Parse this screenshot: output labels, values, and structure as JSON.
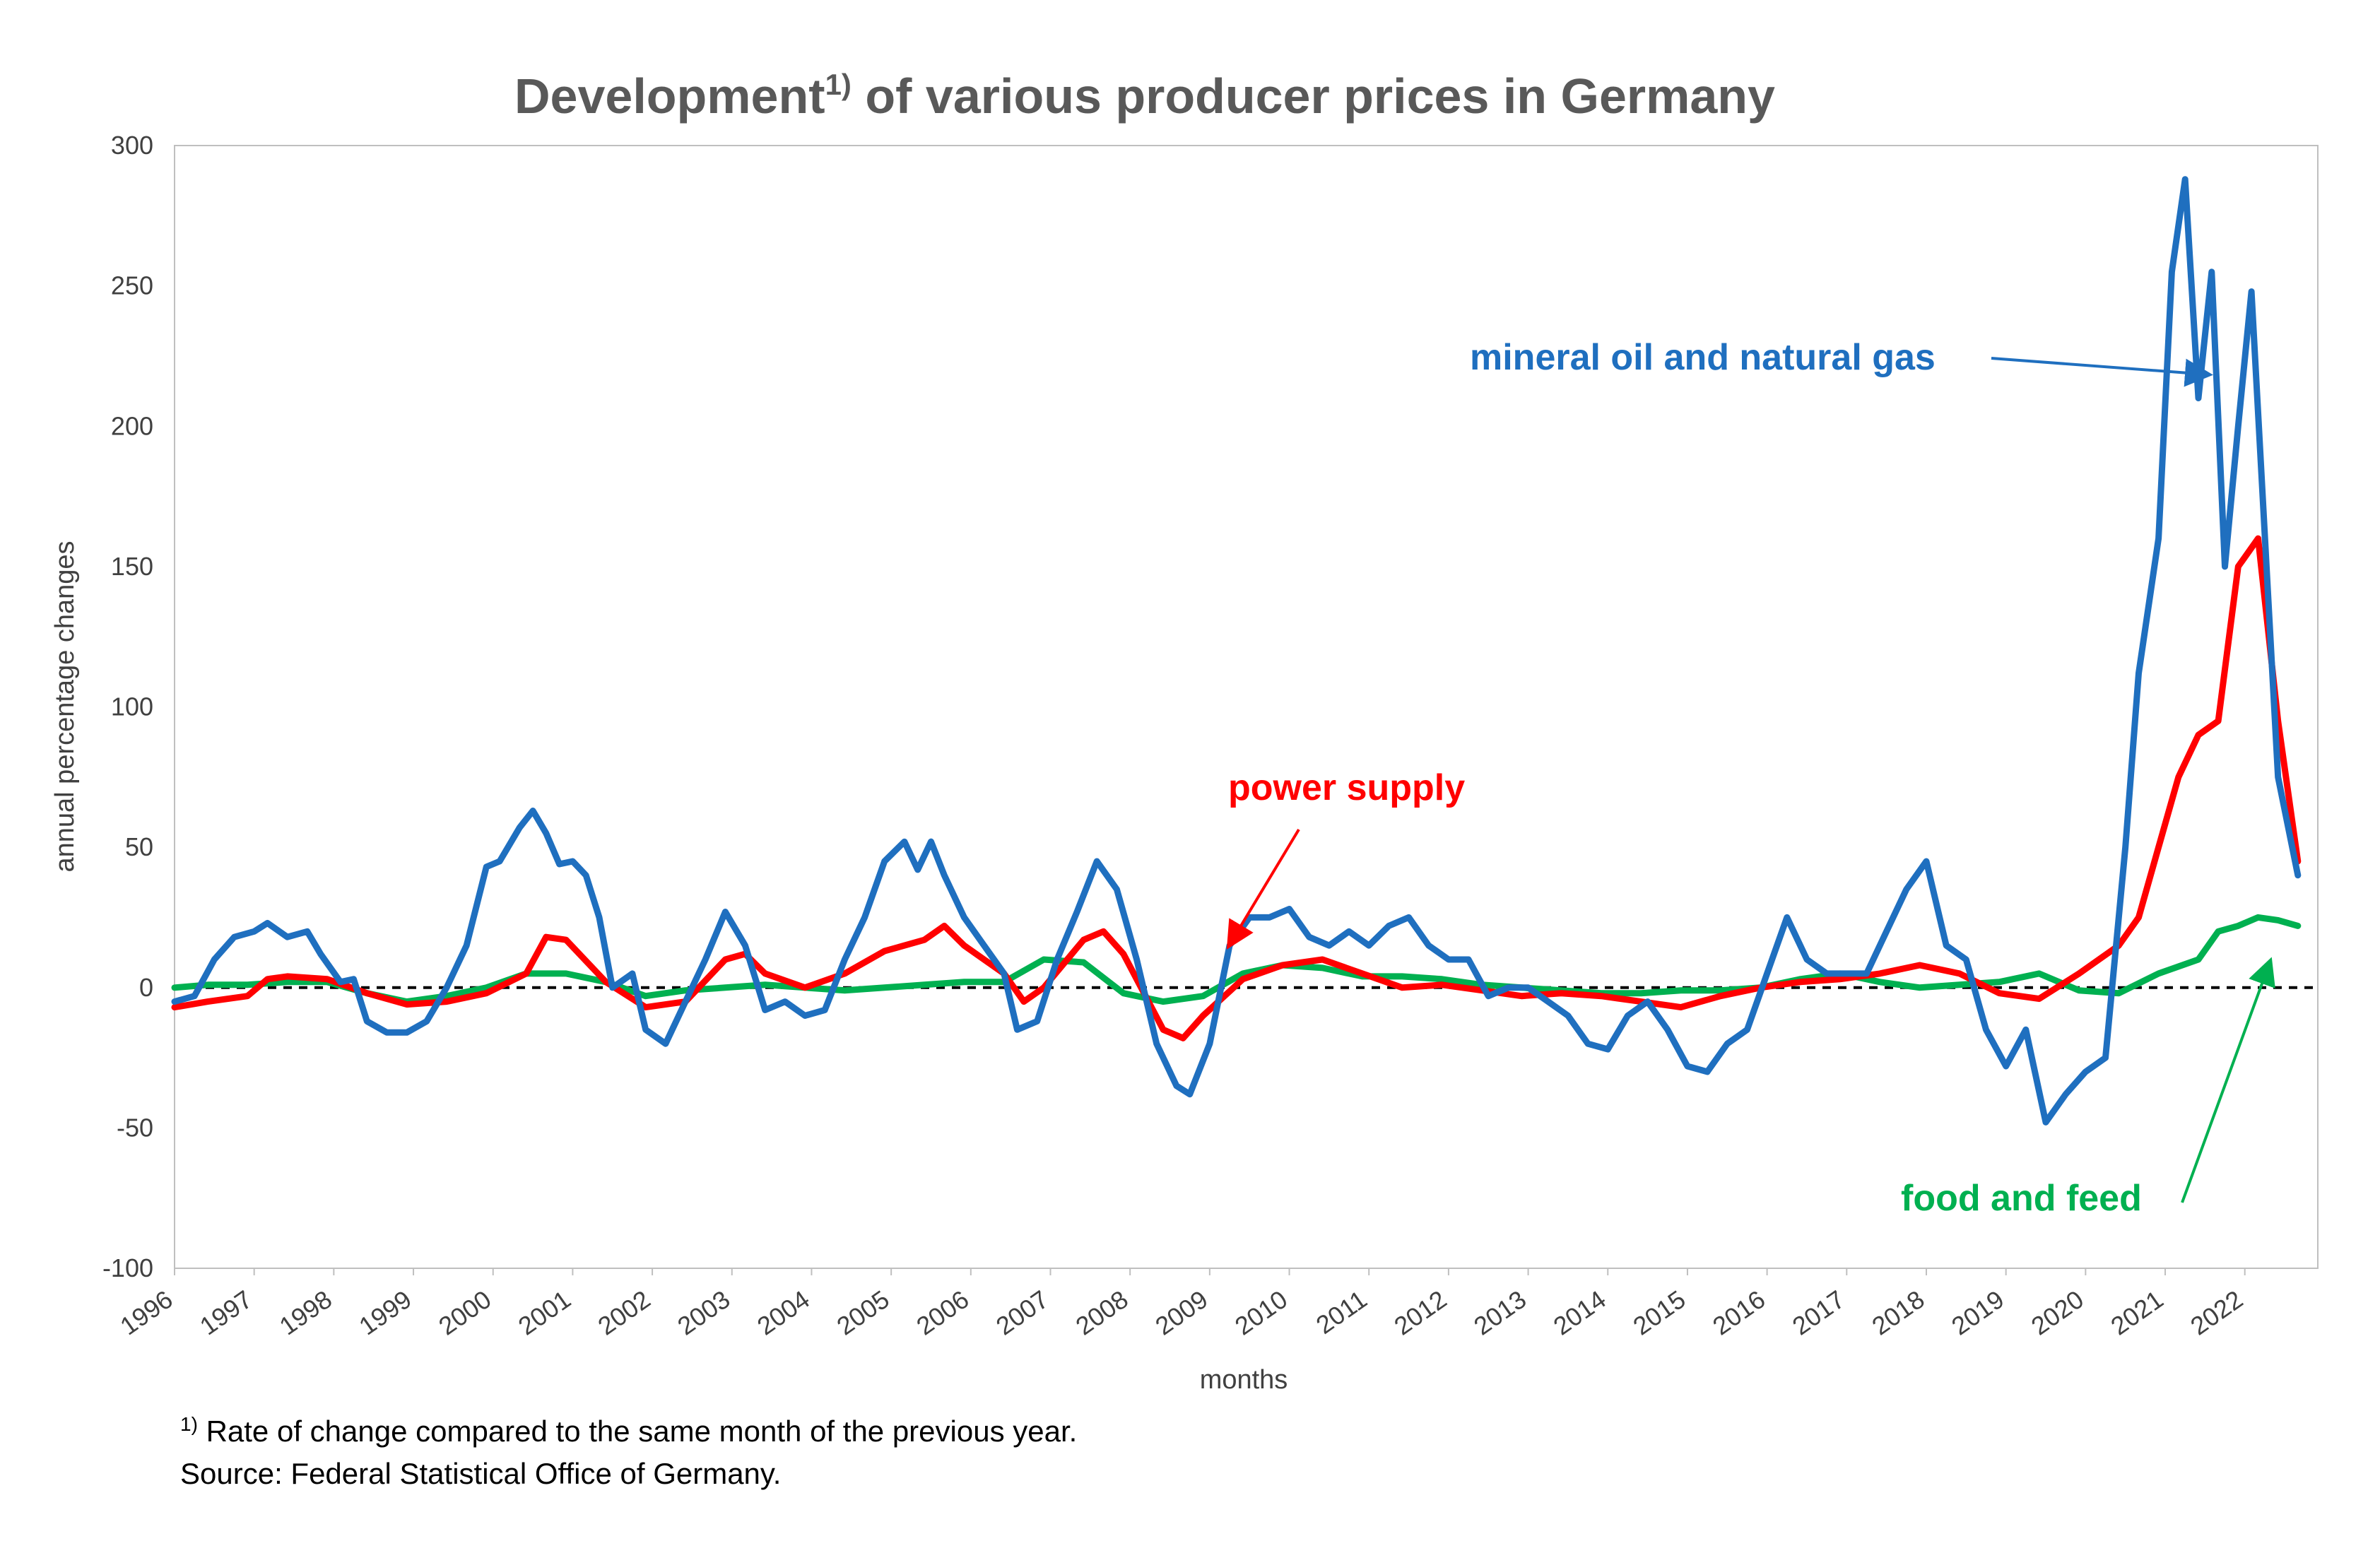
{
  "chart_data": {
    "type": "line",
    "title": "Development",
    "title_sup": "1)",
    "title_rest": " of various producer prices in Germany",
    "xlabel": "months",
    "ylabel": "annual percentage changes",
    "ylim": [
      -100,
      300
    ],
    "yticks": [
      300,
      250,
      200,
      150,
      100,
      50,
      0,
      -50,
      -100
    ],
    "xlim": [
      "1996-01",
      "2022-12"
    ],
    "xticks": [
      "1996",
      "1997",
      "1998",
      "1999",
      "2000",
      "2001",
      "2002",
      "2003",
      "2004",
      "2005",
      "2006",
      "2007",
      "2008",
      "2009",
      "2010",
      "2011",
      "2012",
      "2013",
      "2014",
      "2015",
      "2016",
      "2017",
      "2018",
      "2019",
      "2020",
      "2021",
      "2022"
    ],
    "grid": false,
    "zero_line": "dashed",
    "series": [
      {
        "name": "mineral oil and natural gas",
        "color": "#1f6fbf",
        "points": [
          [
            "1996-01",
            -5
          ],
          [
            "1996-04",
            -3
          ],
          [
            "1996-07",
            10
          ],
          [
            "1996-10",
            18
          ],
          [
            "1997-01",
            20
          ],
          [
            "1997-03",
            23
          ],
          [
            "1997-06",
            18
          ],
          [
            "1997-09",
            20
          ],
          [
            "1997-11",
            12
          ],
          [
            "1998-02",
            2
          ],
          [
            "1998-04",
            3
          ],
          [
            "1998-06",
            -12
          ],
          [
            "1998-09",
            -16
          ],
          [
            "1998-12",
            -16
          ],
          [
            "1999-03",
            -12
          ],
          [
            "1999-06",
            0
          ],
          [
            "1999-09",
            15
          ],
          [
            "1999-12",
            43
          ],
          [
            "2000-02",
            45
          ],
          [
            "2000-05",
            57
          ],
          [
            "2000-07",
            63
          ],
          [
            "2000-09",
            55
          ],
          [
            "2000-11",
            44
          ],
          [
            "2001-01",
            45
          ],
          [
            "2001-03",
            40
          ],
          [
            "2001-05",
            25
          ],
          [
            "2001-07",
            0
          ],
          [
            "2001-10",
            5
          ],
          [
            "2001-12",
            -15
          ],
          [
            "2002-03",
            -20
          ],
          [
            "2002-06",
            -5
          ],
          [
            "2002-09",
            10
          ],
          [
            "2002-12",
            27
          ],
          [
            "2003-03",
            15
          ],
          [
            "2003-06",
            -8
          ],
          [
            "2003-09",
            -5
          ],
          [
            "2003-12",
            -10
          ],
          [
            "2004-03",
            -8
          ],
          [
            "2004-06",
            10
          ],
          [
            "2004-09",
            25
          ],
          [
            "2004-12",
            45
          ],
          [
            "2005-03",
            52
          ],
          [
            "2005-05",
            42
          ],
          [
            "2005-07",
            52
          ],
          [
            "2005-09",
            40
          ],
          [
            "2005-12",
            25
          ],
          [
            "2006-03",
            15
          ],
          [
            "2006-06",
            5
          ],
          [
            "2006-08",
            -15
          ],
          [
            "2006-11",
            -12
          ],
          [
            "2007-02",
            10
          ],
          [
            "2007-05",
            27
          ],
          [
            "2007-08",
            45
          ],
          [
            "2007-11",
            35
          ],
          [
            "2008-02",
            10
          ],
          [
            "2008-05",
            -20
          ],
          [
            "2008-08",
            -35
          ],
          [
            "2008-10",
            -38
          ],
          [
            "2009-01",
            -20
          ],
          [
            "2009-04",
            15
          ],
          [
            "2009-07",
            25
          ],
          [
            "2009-10",
            25
          ],
          [
            "2010-01",
            28
          ],
          [
            "2010-04",
            18
          ],
          [
            "2010-07",
            15
          ],
          [
            "2010-10",
            20
          ],
          [
            "2011-01",
            15
          ],
          [
            "2011-04",
            22
          ],
          [
            "2011-07",
            25
          ],
          [
            "2011-10",
            15
          ],
          [
            "2012-01",
            10
          ],
          [
            "2012-04",
            10
          ],
          [
            "2012-07",
            -3
          ],
          [
            "2012-10",
            0
          ],
          [
            "2013-01",
            0
          ],
          [
            "2013-04",
            -5
          ],
          [
            "2013-07",
            -10
          ],
          [
            "2013-10",
            -20
          ],
          [
            "2014-01",
            -22
          ],
          [
            "2014-04",
            -10
          ],
          [
            "2014-07",
            -5
          ],
          [
            "2014-10",
            -15
          ],
          [
            "2015-01",
            -28
          ],
          [
            "2015-04",
            -30
          ],
          [
            "2015-07",
            -20
          ],
          [
            "2015-10",
            -15
          ],
          [
            "2016-01",
            5
          ],
          [
            "2016-04",
            25
          ],
          [
            "2016-07",
            10
          ],
          [
            "2016-10",
            5
          ],
          [
            "2017-01",
            5
          ],
          [
            "2017-04",
            5
          ],
          [
            "2017-07",
            20
          ],
          [
            "2017-10",
            35
          ],
          [
            "2018-01",
            45
          ],
          [
            "2018-04",
            15
          ],
          [
            "2018-07",
            10
          ],
          [
            "2018-10",
            -15
          ],
          [
            "2019-01",
            -28
          ],
          [
            "2019-04",
            -15
          ],
          [
            "2019-07",
            -48
          ],
          [
            "2019-10",
            -38
          ],
          [
            "2020-01",
            -30
          ],
          [
            "2020-04",
            -25
          ],
          [
            "2020-07",
            50
          ],
          [
            "2020-09",
            112
          ],
          [
            "2020-12",
            160
          ],
          [
            "2021-02",
            255
          ],
          [
            "2021-04",
            288
          ],
          [
            "2021-06",
            210
          ],
          [
            "2021-08",
            255
          ],
          [
            "2021-10",
            150
          ],
          [
            "2021-12",
            200
          ],
          [
            "2022-02",
            248
          ],
          [
            "2022-06",
            75
          ],
          [
            "2022-09",
            40
          ]
        ]
      },
      {
        "name": "power supply",
        "color": "#ff0000",
        "points": [
          [
            "1996-01",
            -7
          ],
          [
            "1996-06",
            -5
          ],
          [
            "1996-12",
            -3
          ],
          [
            "1997-03",
            3
          ],
          [
            "1997-06",
            4
          ],
          [
            "1997-12",
            3
          ],
          [
            "1998-06",
            -2
          ],
          [
            "1998-12",
            -6
          ],
          [
            "1999-06",
            -5
          ],
          [
            "1999-12",
            -2
          ],
          [
            "2000-06",
            5
          ],
          [
            "2000-09",
            18
          ],
          [
            "2000-12",
            17
          ],
          [
            "2001-06",
            2
          ],
          [
            "2001-12",
            -7
          ],
          [
            "2002-06",
            -5
          ],
          [
            "2002-12",
            10
          ],
          [
            "2003-03",
            12
          ],
          [
            "2003-06",
            5
          ],
          [
            "2003-12",
            0
          ],
          [
            "2004-06",
            5
          ],
          [
            "2004-12",
            13
          ],
          [
            "2005-06",
            17
          ],
          [
            "2005-09",
            22
          ],
          [
            "2005-12",
            15
          ],
          [
            "2006-06",
            5
          ],
          [
            "2006-09",
            -5
          ],
          [
            "2006-12",
            0
          ],
          [
            "2007-06",
            17
          ],
          [
            "2007-09",
            20
          ],
          [
            "2007-12",
            12
          ],
          [
            "2008-06",
            -15
          ],
          [
            "2008-09",
            -18
          ],
          [
            "2008-12",
            -10
          ],
          [
            "2009-06",
            3
          ],
          [
            "2009-12",
            8
          ],
          [
            "2010-06",
            10
          ],
          [
            "2010-12",
            5
          ],
          [
            "2011-06",
            0
          ],
          [
            "2011-12",
            1
          ],
          [
            "2012-06",
            -1
          ],
          [
            "2012-12",
            -3
          ],
          [
            "2013-06",
            -2
          ],
          [
            "2013-12",
            -3
          ],
          [
            "2014-06",
            -5
          ],
          [
            "2014-12",
            -7
          ],
          [
            "2015-06",
            -3
          ],
          [
            "2015-12",
            0
          ],
          [
            "2016-06",
            2
          ],
          [
            "2016-12",
            3
          ],
          [
            "2017-06",
            5
          ],
          [
            "2017-12",
            8
          ],
          [
            "2018-06",
            5
          ],
          [
            "2018-12",
            -2
          ],
          [
            "2019-06",
            -4
          ],
          [
            "2019-12",
            5
          ],
          [
            "2020-06",
            15
          ],
          [
            "2020-09",
            25
          ],
          [
            "2020-12",
            50
          ],
          [
            "2021-03",
            75
          ],
          [
            "2021-06",
            90
          ],
          [
            "2021-09",
            95
          ],
          [
            "2021-12",
            150
          ],
          [
            "2022-03",
            160
          ],
          [
            "2022-06",
            95
          ],
          [
            "2022-09",
            45
          ]
        ]
      },
      {
        "name": "food and feed",
        "color": "#00b050",
        "points": [
          [
            "1996-01",
            0
          ],
          [
            "1996-06",
            1
          ],
          [
            "1996-12",
            1
          ],
          [
            "1997-06",
            2
          ],
          [
            "1997-12",
            2
          ],
          [
            "1998-06",
            -2
          ],
          [
            "1998-12",
            -5
          ],
          [
            "1999-06",
            -3
          ],
          [
            "1999-12",
            0
          ],
          [
            "2000-06",
            5
          ],
          [
            "2000-12",
            5
          ],
          [
            "2001-06",
            2
          ],
          [
            "2001-12",
            -3
          ],
          [
            "2002-06",
            -1
          ],
          [
            "2002-12",
            0
          ],
          [
            "2003-06",
            1
          ],
          [
            "2003-12",
            0
          ],
          [
            "2004-06",
            -1
          ],
          [
            "2004-12",
            0
          ],
          [
            "2005-06",
            1
          ],
          [
            "2005-12",
            2
          ],
          [
            "2006-06",
            2
          ],
          [
            "2006-12",
            10
          ],
          [
            "2007-06",
            9
          ],
          [
            "2007-12",
            -2
          ],
          [
            "2008-06",
            -5
          ],
          [
            "2008-12",
            -3
          ],
          [
            "2009-06",
            5
          ],
          [
            "2009-12",
            8
          ],
          [
            "2010-06",
            7
          ],
          [
            "2010-12",
            4
          ],
          [
            "2011-06",
            4
          ],
          [
            "2011-12",
            3
          ],
          [
            "2012-06",
            1
          ],
          [
            "2012-12",
            0
          ],
          [
            "2013-06",
            -1
          ],
          [
            "2013-12",
            -2
          ],
          [
            "2014-06",
            -2
          ],
          [
            "2014-12",
            -1
          ],
          [
            "2015-06",
            -1
          ],
          [
            "2015-12",
            0
          ],
          [
            "2016-06",
            3
          ],
          [
            "2016-12",
            5
          ],
          [
            "2017-06",
            2
          ],
          [
            "2017-12",
            0
          ],
          [
            "2018-06",
            1
          ],
          [
            "2018-12",
            2
          ],
          [
            "2019-06",
            5
          ],
          [
            "2019-12",
            -1
          ],
          [
            "2020-06",
            -2
          ],
          [
            "2020-12",
            5
          ],
          [
            "2021-06",
            10
          ],
          [
            "2021-09",
            20
          ],
          [
            "2021-12",
            22
          ],
          [
            "2022-03",
            25
          ],
          [
            "2022-06",
            24
          ],
          [
            "2022-09",
            22
          ]
        ]
      }
    ],
    "annotations": [
      {
        "text": "mineral oil and natural gas",
        "color": "#1f6fbf"
      },
      {
        "text": "power supply",
        "color": "#ff0000"
      },
      {
        "text": "food and feed",
        "color": "#00b050"
      }
    ]
  },
  "footnotes": {
    "sup": "1)",
    "line1": " Rate of change compared to the same month of the previous year.",
    "line2": "Source: Federal Statistical Office of Germany."
  }
}
